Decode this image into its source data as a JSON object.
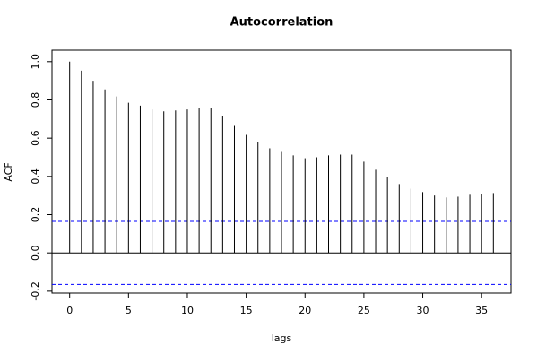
{
  "chart_data": {
    "type": "acf",
    "title": "Autocorrelation",
    "x_label": "lags",
    "y_label": "ACF",
    "x": [
      0,
      1,
      2,
      3,
      4,
      5,
      6,
      7,
      8,
      9,
      10,
      11,
      12,
      13,
      14,
      15,
      16,
      17,
      18,
      19,
      20,
      21,
      22,
      23,
      24,
      25,
      26,
      27,
      28,
      29,
      30,
      31,
      32,
      33,
      34,
      35,
      36
    ],
    "values": [
      1.0,
      0.953,
      0.9,
      0.855,
      0.818,
      0.785,
      0.77,
      0.75,
      0.74,
      0.745,
      0.75,
      0.76,
      0.76,
      0.715,
      0.664,
      0.617,
      0.58,
      0.547,
      0.528,
      0.51,
      0.495,
      0.5,
      0.51,
      0.514,
      0.514,
      0.477,
      0.435,
      0.397,
      0.36,
      0.336,
      0.318,
      0.3,
      0.29,
      0.294,
      0.304,
      0.308,
      0.313
    ],
    "color": "#000000",
    "confidence_bounds": [
      0.165,
      -0.165
    ],
    "confidence_color": "#0000ff",
    "xlim": [
      -1.5,
      37.5
    ],
    "ylim": [
      -0.21,
      1.06
    ],
    "xticks": [
      0,
      5,
      10,
      15,
      20,
      25,
      30,
      35
    ],
    "yticks": [
      -0.2,
      {
        "value": 0,
        "label": "0.0"
      },
      0.2,
      0.4,
      0.6,
      0.8,
      {
        "value": 1,
        "label": "1.0"
      }
    ]
  }
}
